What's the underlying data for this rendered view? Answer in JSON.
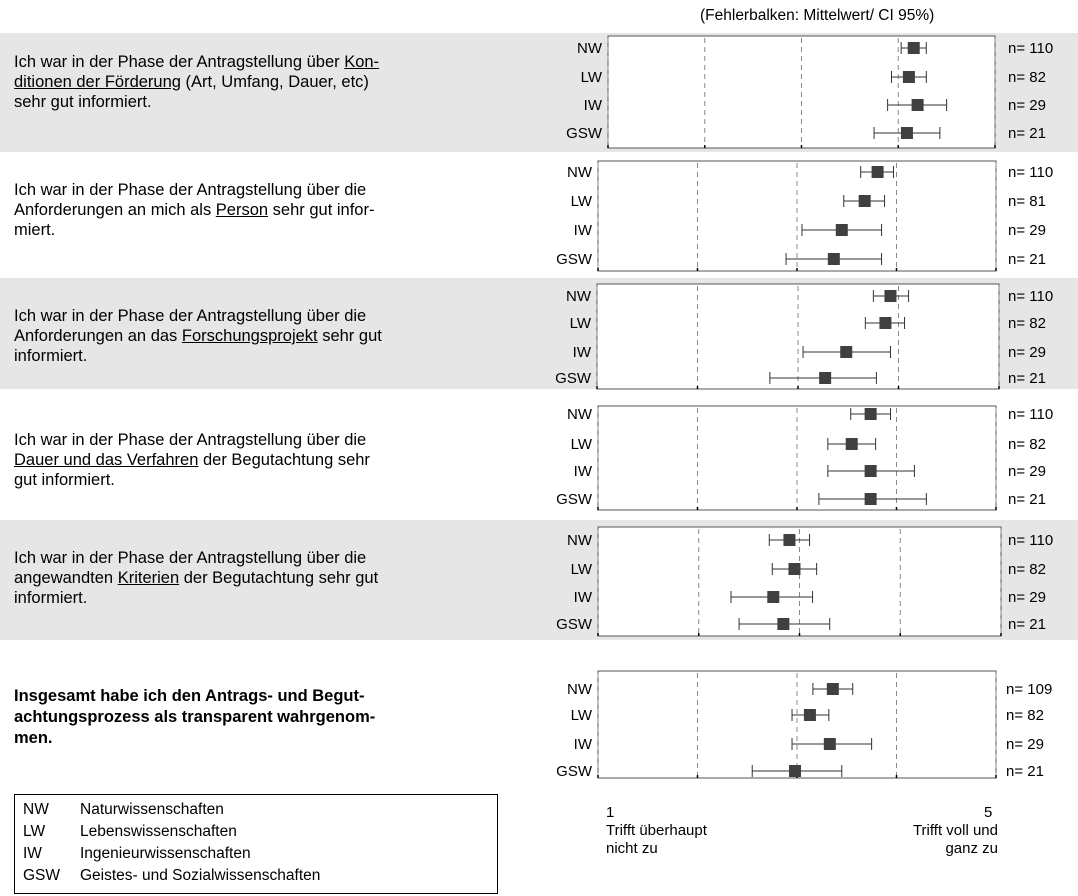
{
  "note": "(Fehlerbalken: Mittelwert/ CI 95%)",
  "groups": [
    "NW",
    "LW",
    "IW",
    "GSW"
  ],
  "questions": [
    {
      "lines": [
        [
          "Ich war in der Phase der Antragstellung über ",
          {
            "u": "Kon-"
          }
        ],
        [
          {
            "u": "ditionen der Förderung"
          },
          " (Art, Umfang, Dauer, etc)"
        ],
        [
          "sehr gut informiert."
        ]
      ]
    },
    {
      "lines": [
        [
          "Ich war in der Phase der Antragstellung über die"
        ],
        [
          "Anforderungen an mich als ",
          {
            "u": "Person"
          },
          " sehr gut infor-"
        ],
        [
          "miert."
        ]
      ]
    },
    {
      "lines": [
        [
          "Ich war in der Phase der Antragstellung über die"
        ],
        [
          "Anforderungen an das ",
          {
            "u": "Forschungsprojekt"
          },
          " sehr gut"
        ],
        [
          "informiert."
        ]
      ]
    },
    {
      "lines": [
        [
          "Ich war in der Phase der Antragstellung über die"
        ],
        [
          {
            "u": "Dauer und das Verfahren"
          },
          " der Begutachtung sehr"
        ],
        [
          "gut informiert."
        ]
      ]
    },
    {
      "lines": [
        [
          "Ich war in der Phase der Antragstellung über die"
        ],
        [
          "angewandten ",
          {
            "u": "Kriterien"
          },
          " der Begutachtung sehr gut"
        ],
        [
          "informiert."
        ]
      ]
    },
    {
      "bold": true,
      "lines": [
        [
          "Insgesamt habe ich den Antrags- und Begut-"
        ],
        [
          "achtungsprozess als transparent wahrgenom-"
        ],
        [
          "men."
        ]
      ]
    }
  ],
  "legend": [
    {
      "abbr": "NW",
      "name": "Naturwissenschaften"
    },
    {
      "abbr": "LW",
      "name": "Lebenswissenschaften"
    },
    {
      "abbr": "IW",
      "name": "Ingenieurwissenschaften"
    },
    {
      "abbr": "GSW",
      "name": "Geistes- und Sozialwissenschaften"
    }
  ],
  "axis": {
    "min_tick": "1",
    "max_tick": "5",
    "min_label": [
      "Trifft überhaupt",
      "nicht zu"
    ],
    "max_label": [
      "Trifft voll und",
      "ganz zu"
    ]
  },
  "colors": {
    "band": "#e6e6e6",
    "marker": "#404040",
    "grid": "#888888"
  },
  "chart_data": [
    {
      "type": "scatter",
      "xlim": [
        1,
        5
      ],
      "groups": [
        "NW",
        "LW",
        "IW",
        "GSW"
      ],
      "mean": [
        4.16,
        4.11,
        4.2,
        4.09
      ],
      "ci_low": [
        4.03,
        3.93,
        3.89,
        3.75
      ],
      "ci_high": [
        4.29,
        4.29,
        4.5,
        4.43
      ],
      "n": [
        "n= 110",
        "n= 82",
        "n= 29",
        "n= 21"
      ]
    },
    {
      "type": "scatter",
      "xlim": [
        1,
        5
      ],
      "groups": [
        "NW",
        "LW",
        "IW",
        "GSW"
      ],
      "mean": [
        3.81,
        3.68,
        3.45,
        3.37
      ],
      "ci_low": [
        3.64,
        3.47,
        3.05,
        2.89
      ],
      "ci_high": [
        3.97,
        3.88,
        3.85,
        3.85
      ],
      "n": [
        "n= 110",
        "n= 81",
        "n= 29",
        "n= 21"
      ]
    },
    {
      "type": "scatter",
      "xlim": [
        1,
        5
      ],
      "groups": [
        "NW",
        "LW",
        "IW",
        "GSW"
      ],
      "mean": [
        3.92,
        3.87,
        3.48,
        3.27
      ],
      "ci_low": [
        3.75,
        3.67,
        3.05,
        2.72
      ],
      "ci_high": [
        4.1,
        4.06,
        3.92,
        3.78
      ],
      "n": [
        "n= 110",
        "n= 82",
        "n= 29",
        "n= 21"
      ]
    },
    {
      "type": "scatter",
      "xlim": [
        1,
        5
      ],
      "groups": [
        "NW",
        "LW",
        "IW",
        "GSW"
      ],
      "mean": [
        3.74,
        3.55,
        3.74,
        3.74
      ],
      "ci_low": [
        3.54,
        3.31,
        3.31,
        3.22
      ],
      "ci_high": [
        3.94,
        3.79,
        4.18,
        4.3
      ],
      "n": [
        "n= 110",
        "n= 82",
        "n= 29",
        "n= 21"
      ]
    },
    {
      "type": "scatter",
      "xlim": [
        1,
        5
      ],
      "groups": [
        "NW",
        "LW",
        "IW",
        "GSW"
      ],
      "mean": [
        2.9,
        2.95,
        2.74,
        2.84
      ],
      "ci_low": [
        2.7,
        2.73,
        2.32,
        2.4
      ],
      "ci_high": [
        3.1,
        3.17,
        3.13,
        3.3
      ],
      "n": [
        "n= 110",
        "n= 82",
        "n= 29",
        "n= 21"
      ]
    },
    {
      "type": "scatter",
      "xlim": [
        1,
        5
      ],
      "groups": [
        "NW",
        "LW",
        "IW",
        "GSW"
      ],
      "mean": [
        3.36,
        3.13,
        3.33,
        2.98
      ],
      "ci_low": [
        3.16,
        2.95,
        2.95,
        2.55
      ],
      "ci_high": [
        3.56,
        3.32,
        3.75,
        3.45
      ],
      "n": [
        "n= 109",
        "n= 82",
        "n= 29",
        "n= 21"
      ]
    }
  ]
}
